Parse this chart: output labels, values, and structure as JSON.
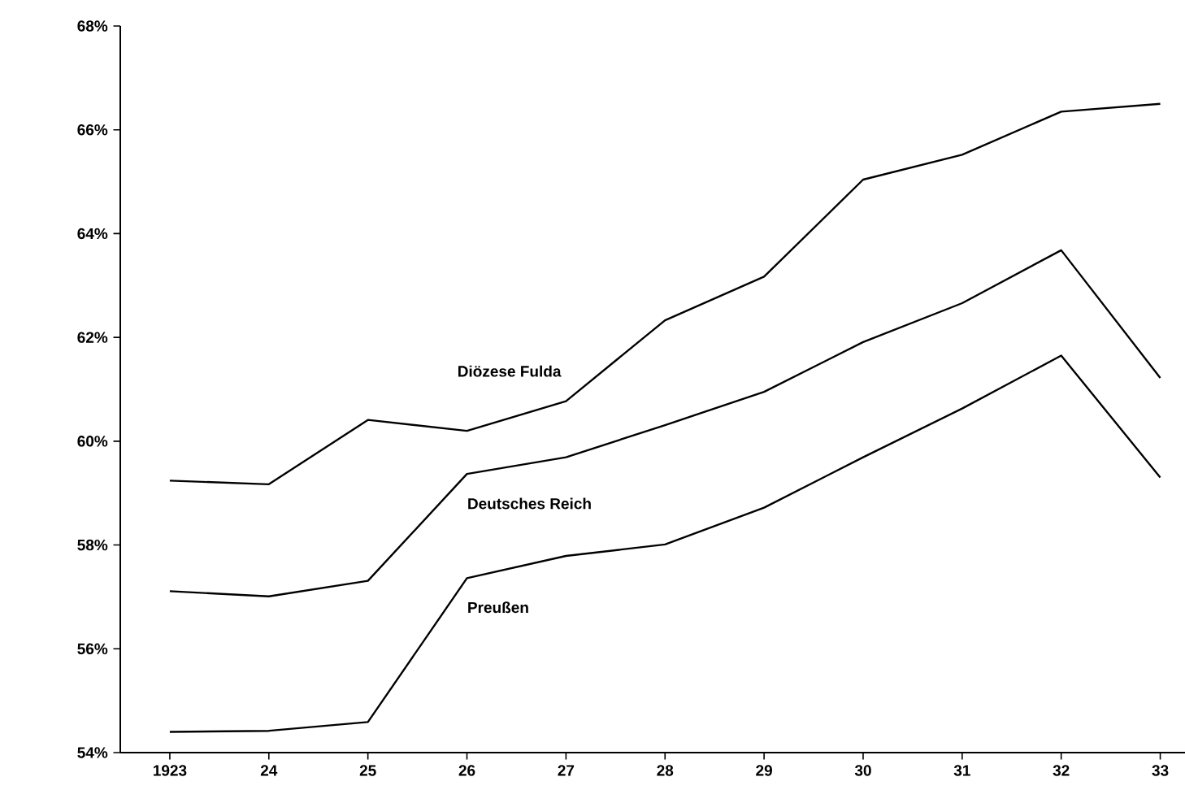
{
  "chart_data": {
    "type": "line",
    "categories": [
      "1923",
      "24",
      "25",
      "26",
      "27",
      "28",
      "29",
      "30",
      "31",
      "32",
      "33"
    ],
    "series": [
      {
        "name": "Diözese Fulda",
        "color": "#000000",
        "values": [
          59.24,
          59.17,
          60.41,
          60.2,
          60.77,
          62.33,
          63.17,
          65.04,
          65.52,
          66.35,
          66.5
        ]
      },
      {
        "name": "Deutsches Reich",
        "color": "#000000",
        "values": [
          57.11,
          57.01,
          57.31,
          59.37,
          59.69,
          60.31,
          60.95,
          61.91,
          62.66,
          63.68,
          61.22
        ]
      },
      {
        "name": "Preußen",
        "color": "#000000",
        "values": [
          54.4,
          54.42,
          54.59,
          57.36,
          57.79,
          58.01,
          58.72,
          59.69,
          60.63,
          61.65,
          59.3
        ]
      }
    ],
    "ylim": [
      54,
      68
    ],
    "yticks": [
      {
        "value": 54,
        "label": "54%"
      },
      {
        "value": 56,
        "label": "56%"
      },
      {
        "value": 58,
        "label": "58%"
      },
      {
        "value": 60,
        "label": "60%"
      },
      {
        "value": 62,
        "label": "62%"
      },
      {
        "value": 64,
        "label": "64%"
      },
      {
        "value": 66,
        "label": "66%"
      },
      {
        "value": 68,
        "label": "68%"
      }
    ],
    "grid": false,
    "legend": false,
    "marker": "none",
    "line_style": "solid"
  }
}
